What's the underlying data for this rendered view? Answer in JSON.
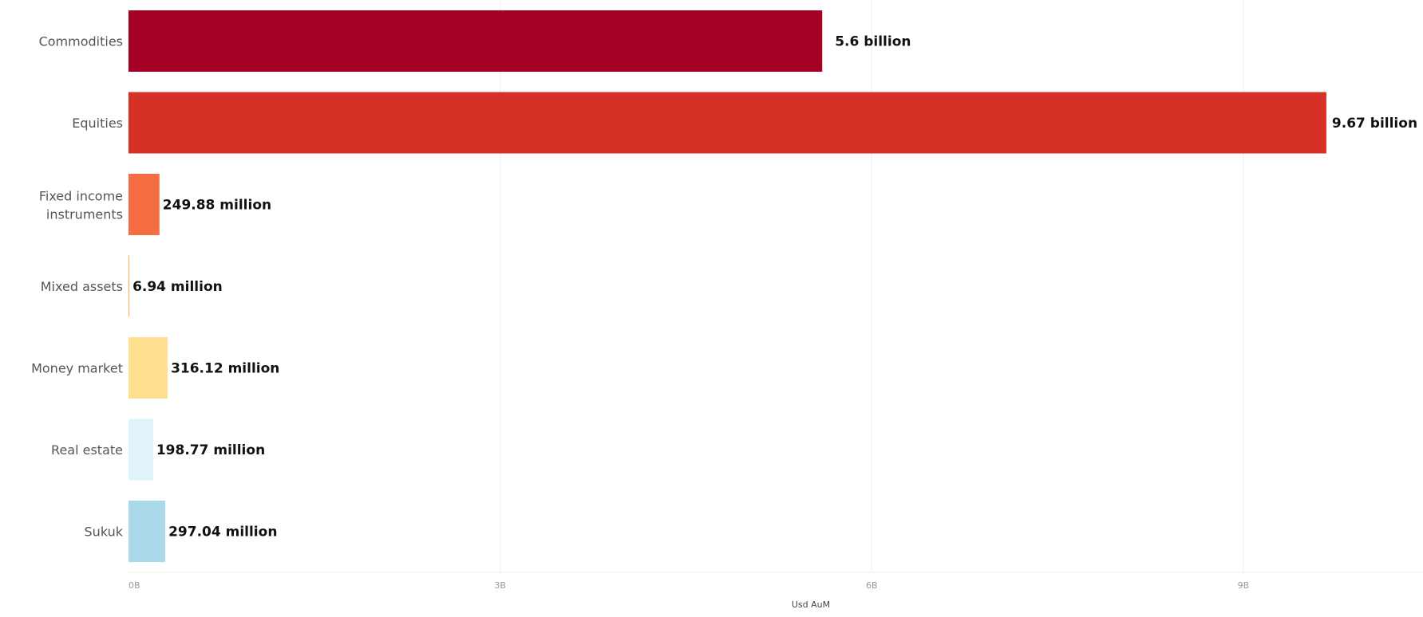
{
  "chart_data": {
    "type": "bar",
    "orientation": "horizontal",
    "categories": [
      "Commodities",
      "Equities",
      "Fixed income instruments",
      "Mixed assets",
      "Money market",
      "Real estate",
      "Sukuk"
    ],
    "values": [
      5600000000,
      9670000000,
      249880000,
      6940000,
      316120000,
      198770000,
      297040000
    ],
    "value_labels": [
      "5.6 billion",
      "9.67 billion",
      "249.88 million",
      "6.94 million",
      "316.12 million",
      "198.77 million",
      "297.04 million"
    ],
    "colors": [
      "#a50026",
      "#d73027",
      "#f46d43",
      "#fdae61",
      "#fee090",
      "#e0f3f8",
      "#abd9e9"
    ],
    "xlabel": "Usd AuM",
    "ylabel": "",
    "title": "",
    "xlim": [
      0,
      10450000000
    ],
    "xticks": [
      0,
      3000000000,
      6000000000,
      9000000000
    ],
    "xtick_labels": [
      "0B",
      "3B",
      "6B",
      "9B"
    ],
    "grid": true,
    "legend": false
  }
}
